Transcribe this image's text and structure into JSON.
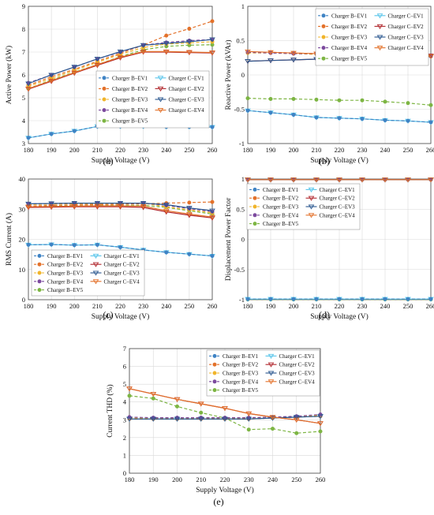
{
  "chart_data": [
    {
      "type": "line",
      "panel_label": "(a)",
      "xlabel": "Supply Voltage (V)",
      "ylabel": "Active Power (kW)",
      "xlim": [
        180,
        260
      ],
      "ylim": [
        3,
        9
      ],
      "x": [
        180,
        190,
        200,
        210,
        220,
        230,
        240,
        250,
        260
      ],
      "xticks": [
        "180",
        "190",
        "200",
        "210",
        "220",
        "230",
        "240",
        "250",
        "260"
      ],
      "yticks": [
        "3",
        "4",
        "5",
        "6",
        "7",
        "8",
        "9"
      ],
      "grid": true,
      "legend_position": "bottom-right",
      "series": [
        {
          "name": "Charger B–EV1",
          "values": [
            3.25,
            3.42,
            3.55,
            3.75,
            3.75,
            3.75,
            3.73,
            3.73,
            3.72
          ]
        },
        {
          "name": "Charger B–EV2",
          "values": [
            5.55,
            5.92,
            6.25,
            6.6,
            6.95,
            7.3,
            7.72,
            8.02,
            8.35
          ]
        },
        {
          "name": "Charger B–EV3",
          "values": [
            5.5,
            5.85,
            6.2,
            6.55,
            6.9,
            7.2,
            7.35,
            7.4,
            7.45
          ]
        },
        {
          "name": "Charger B–EV4",
          "values": [
            5.65,
            6.0,
            6.35,
            6.7,
            7.0,
            7.3,
            7.42,
            7.5,
            7.55
          ]
        },
        {
          "name": "Charger B–EV5",
          "values": [
            5.4,
            5.78,
            6.12,
            6.45,
            6.8,
            7.1,
            7.25,
            7.3,
            7.32
          ]
        },
        {
          "name": "Charger C–EV1",
          "values": [
            3.25,
            3.42,
            3.55,
            3.75,
            3.75,
            3.75,
            3.73,
            3.73,
            3.72
          ]
        },
        {
          "name": "Charger C–EV2",
          "values": [
            5.38,
            5.72,
            6.08,
            6.42,
            6.75,
            7.0,
            7.0,
            6.98,
            6.96
          ]
        },
        {
          "name": "Charger C–EV3",
          "values": [
            5.62,
            6.0,
            6.35,
            6.7,
            7.02,
            7.3,
            7.38,
            7.45,
            7.55
          ]
        },
        {
          "name": "Charger C–EV4",
          "values": [
            5.4,
            5.75,
            6.1,
            6.45,
            6.78,
            7.02,
            7.02,
            7.0,
            6.98
          ]
        }
      ]
    },
    {
      "type": "line",
      "panel_label": "(b)",
      "xlabel": "Supply Voltage (V)",
      "ylabel": "Reactive Power (kVAr)",
      "xlim": [
        180,
        260
      ],
      "ylim": [
        -1,
        1
      ],
      "x": [
        180,
        190,
        200,
        210,
        220,
        230,
        240,
        250,
        260
      ],
      "xticks": [
        "180",
        "190",
        "200",
        "210",
        "220",
        "230",
        "240",
        "250",
        "260"
      ],
      "yticks": [
        "-1",
        "-0.5",
        "0",
        "0.5",
        "1"
      ],
      "grid": true,
      "legend_position": "top-right",
      "series": [
        {
          "name": "Charger B–EV1",
          "values": [
            -0.52,
            -0.55,
            -0.58,
            -0.62,
            -0.63,
            -0.64,
            -0.66,
            -0.67,
            -0.69
          ]
        },
        {
          "name": "Charger B–EV2",
          "values": [
            0.33,
            0.33,
            0.32,
            0.31,
            0.3,
            0.29,
            0.28,
            0.28,
            0.28
          ]
        },
        {
          "name": "Charger B–EV3",
          "values": [
            0.32,
            0.32,
            0.31,
            0.3,
            0.29,
            0.28,
            0.28,
            0.27,
            0.27
          ]
        },
        {
          "name": "Charger B–EV4",
          "values": [
            0.33,
            0.32,
            0.31,
            0.31,
            0.3,
            0.29,
            0.28,
            0.27,
            0.27
          ]
        },
        {
          "name": "Charger B–EV5",
          "values": [
            -0.34,
            -0.35,
            -0.35,
            -0.36,
            -0.37,
            -0.37,
            -0.39,
            -0.41,
            -0.44
          ]
        },
        {
          "name": "Charger C–EV1",
          "values": [
            -0.52,
            -0.55,
            -0.58,
            -0.62,
            -0.63,
            -0.64,
            -0.66,
            -0.67,
            -0.69
          ]
        },
        {
          "name": "Charger C–EV2",
          "values": [
            0.2,
            0.21,
            0.22,
            0.23,
            0.24,
            0.25,
            0.26,
            0.27,
            0.28
          ]
        },
        {
          "name": "Charger C–EV3",
          "values": [
            0.2,
            0.21,
            0.22,
            0.23,
            0.24,
            0.25,
            0.26,
            0.26,
            0.27
          ]
        },
        {
          "name": "Charger C–EV4",
          "values": [
            0.34,
            0.33,
            0.32,
            0.31,
            0.3,
            0.29,
            0.28,
            0.27,
            0.27
          ]
        }
      ]
    },
    {
      "type": "line",
      "panel_label": "(c)",
      "xlabel": "Supply Voltage (V)",
      "ylabel": "RMS Current (A)",
      "xlim": [
        180,
        260
      ],
      "ylim": [
        0,
        40
      ],
      "x": [
        180,
        190,
        200,
        210,
        220,
        230,
        240,
        250,
        260
      ],
      "xticks": [
        "180",
        "190",
        "200",
        "210",
        "220",
        "230",
        "240",
        "250",
        "260"
      ],
      "yticks": [
        "0",
        "10",
        "20",
        "30",
        "40"
      ],
      "grid": true,
      "legend_position": "bottom",
      "series": [
        {
          "name": "Charger B–EV1",
          "values": [
            18.2,
            18.3,
            18.1,
            18.2,
            17.4,
            16.5,
            15.7,
            15.1,
            14.5
          ]
        },
        {
          "name": "Charger B–EV2",
          "values": [
            31.0,
            31.3,
            31.4,
            31.5,
            31.6,
            31.8,
            32.0,
            32.2,
            32.4
          ]
        },
        {
          "name": "Charger B–EV3",
          "values": [
            31.5,
            31.7,
            31.8,
            31.8,
            31.9,
            32.0,
            30.8,
            29.8,
            28.8
          ]
        },
        {
          "name": "Charger B–EV4",
          "values": [
            31.8,
            31.9,
            32.0,
            32.0,
            32.0,
            32.0,
            31.3,
            30.2,
            29.2
          ]
        },
        {
          "name": "Charger B–EV5",
          "values": [
            30.9,
            31.1,
            31.2,
            31.2,
            31.3,
            31.3,
            30.6,
            29.5,
            28.4
          ]
        },
        {
          "name": "Charger C–EV1",
          "values": [
            18.2,
            18.3,
            18.1,
            18.2,
            17.4,
            16.5,
            15.7,
            15.1,
            14.5
          ]
        },
        {
          "name": "Charger C–EV2",
          "values": [
            30.6,
            30.7,
            30.8,
            30.8,
            30.8,
            30.6,
            29.1,
            28.0,
            27.1
          ]
        },
        {
          "name": "Charger C–EV3",
          "values": [
            31.8,
            31.9,
            32.0,
            32.0,
            32.0,
            32.0,
            31.5,
            30.4,
            29.5
          ]
        },
        {
          "name": "Charger C–EV4",
          "values": [
            30.8,
            30.9,
            31.0,
            31.1,
            31.1,
            31.0,
            29.5,
            28.4,
            27.4
          ]
        }
      ]
    },
    {
      "type": "line",
      "panel_label": "(d)",
      "xlabel": "Supply Voltage (V)",
      "ylabel": "Displacement Power Factor",
      "xlim": [
        180,
        260
      ],
      "ylim": [
        -1,
        1
      ],
      "x": [
        180,
        190,
        200,
        210,
        220,
        230,
        240,
        250,
        260
      ],
      "xticks": [
        "180",
        "190",
        "200",
        "210",
        "220",
        "230",
        "240",
        "250",
        "260"
      ],
      "yticks": [
        "-1",
        "-0.5",
        "0",
        "0.5",
        "1"
      ],
      "grid": true,
      "legend_position": "center",
      "series": [
        {
          "name": "Charger B–EV1",
          "values": [
            -0.99,
            -0.99,
            -0.99,
            -0.99,
            -0.99,
            -0.99,
            -0.99,
            -0.99,
            -0.99
          ]
        },
        {
          "name": "Charger B–EV2",
          "values": [
            0.99,
            0.99,
            0.99,
            0.99,
            0.99,
            0.99,
            0.99,
            0.99,
            0.99
          ]
        },
        {
          "name": "Charger B–EV3",
          "values": [
            0.99,
            0.99,
            0.99,
            0.99,
            0.99,
            0.99,
            0.99,
            0.99,
            0.99
          ]
        },
        {
          "name": "Charger B–EV4",
          "values": [
            0.99,
            0.99,
            0.99,
            0.99,
            0.99,
            0.99,
            0.99,
            0.99,
            0.99
          ]
        },
        {
          "name": "Charger B–EV5",
          "values": [
            -0.995,
            -0.995,
            -0.995,
            -0.995,
            -0.995,
            -0.995,
            -0.995,
            -0.995,
            -0.995
          ]
        },
        {
          "name": "Charger C–EV1",
          "values": [
            -0.99,
            -0.99,
            -0.99,
            -0.99,
            -0.99,
            -0.99,
            -0.99,
            -0.99,
            -0.99
          ]
        },
        {
          "name": "Charger C–EV2",
          "values": [
            0.99,
            0.99,
            0.99,
            0.99,
            0.99,
            0.99,
            0.99,
            0.99,
            0.99
          ]
        },
        {
          "name": "Charger C–EV3",
          "values": [
            0.99,
            0.99,
            0.99,
            0.99,
            0.99,
            0.99,
            0.99,
            0.99,
            0.99
          ]
        },
        {
          "name": "Charger C–EV4",
          "values": [
            0.99,
            0.99,
            0.99,
            0.99,
            0.99,
            0.99,
            0.99,
            0.99,
            0.99
          ]
        }
      ]
    },
    {
      "type": "line",
      "panel_label": "(e)",
      "xlabel": "Supply Voltage (V)",
      "ylabel": "Current THD (%)",
      "xlim": [
        180,
        260
      ],
      "ylim": [
        0,
        7
      ],
      "x": [
        180,
        190,
        200,
        210,
        220,
        230,
        240,
        250,
        260
      ],
      "xticks": [
        "180",
        "190",
        "200",
        "210",
        "220",
        "230",
        "240",
        "250",
        "260"
      ],
      "yticks": [
        "0",
        "1",
        "2",
        "3",
        "4",
        "5",
        "6",
        "7"
      ],
      "grid": true,
      "legend_position": "top-right",
      "series": [
        {
          "name": "Charger B–EV1",
          "values": [
            3.05,
            3.05,
            3.05,
            3.05,
            3.05,
            3.05,
            3.1,
            3.15,
            3.2
          ]
        },
        {
          "name": "Charger B–EV2",
          "values": [
            3.05,
            3.05,
            3.05,
            3.05,
            3.05,
            3.05,
            3.1,
            3.15,
            3.2
          ]
        },
        {
          "name": "Charger B–EV3",
          "values": [
            3.1,
            3.1,
            3.1,
            3.1,
            3.1,
            3.1,
            3.12,
            3.18,
            3.25
          ]
        },
        {
          "name": "Charger B–EV4",
          "values": [
            3.15,
            3.12,
            3.12,
            3.12,
            3.12,
            3.12,
            3.15,
            3.2,
            3.3
          ]
        },
        {
          "name": "Charger B–EV5",
          "values": [
            4.35,
            4.2,
            3.75,
            3.4,
            3.1,
            2.45,
            2.5,
            2.25,
            2.35
          ]
        },
        {
          "name": "Charger C–EV1",
          "values": [
            3.05,
            3.05,
            3.05,
            3.05,
            3.05,
            3.05,
            3.1,
            3.15,
            3.2
          ]
        },
        {
          "name": "Charger C–EV2",
          "values": [
            4.75,
            4.45,
            4.15,
            3.9,
            3.65,
            3.35,
            3.15,
            3.0,
            2.8
          ]
        },
        {
          "name": "Charger C–EV3",
          "values": [
            3.05,
            3.05,
            3.05,
            3.05,
            3.05,
            3.05,
            3.1,
            3.15,
            3.2
          ]
        },
        {
          "name": "Charger C–EV4",
          "values": [
            4.75,
            4.45,
            4.15,
            3.9,
            3.65,
            3.35,
            3.15,
            3.0,
            2.8
          ]
        }
      ]
    }
  ],
  "series_styles": [
    {
      "color": "#3f83c4",
      "dash": "dashed",
      "marker": "circle"
    },
    {
      "color": "#e3712a",
      "dash": "dashed",
      "marker": "circle"
    },
    {
      "color": "#f0b42a",
      "dash": "dashed",
      "marker": "circle"
    },
    {
      "color": "#7c4a9e",
      "dash": "dashed",
      "marker": "circle"
    },
    {
      "color": "#7db543",
      "dash": "dashed",
      "marker": "circle"
    },
    {
      "color": "#55c4ea",
      "dash": "solid",
      "marker": "triangle-down"
    },
    {
      "color": "#b0262c",
      "dash": "solid",
      "marker": "triangle-down"
    },
    {
      "color": "#29568e",
      "dash": "solid",
      "marker": "triangle-down"
    },
    {
      "color": "#e3712a",
      "dash": "solid",
      "marker": "triangle-down"
    }
  ]
}
